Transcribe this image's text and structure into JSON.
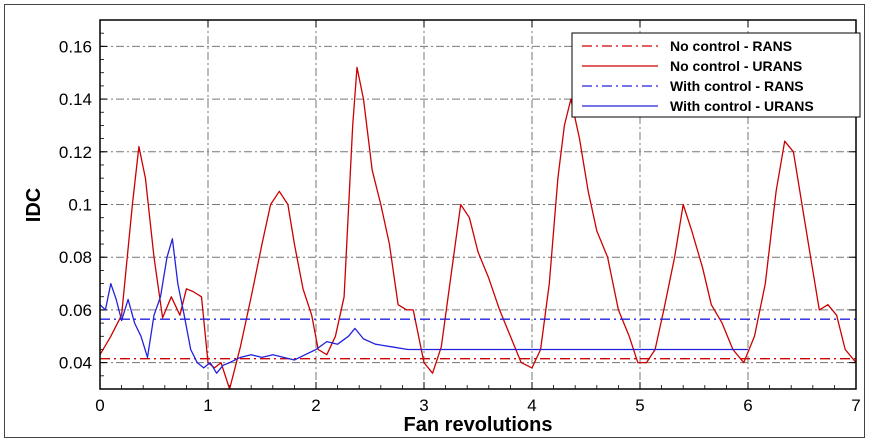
{
  "chart_data": {
    "type": "line",
    "xlabel": "Fan revolutions",
    "ylabel": "IDC",
    "xlim": [
      0,
      7
    ],
    "ylim": [
      0.03,
      0.17
    ],
    "xticks": [
      0,
      1,
      2,
      3,
      4,
      5,
      6,
      7
    ],
    "xtick_labels": [
      "0",
      "1",
      "2",
      "3",
      "4",
      "5",
      "6",
      "7"
    ],
    "yticks": [
      0.04,
      0.06,
      0.08,
      0.1,
      0.12,
      0.14,
      0.16
    ],
    "ytick_labels": [
      "0.04",
      "0.06",
      "0.08",
      "0.1",
      "0.12",
      "0.14",
      "0.16"
    ],
    "grid": true,
    "legend_position": "top-right",
    "series": [
      {
        "name": "No control - RANS",
        "color": "#cc0000",
        "style": "dashdot",
        "x": [
          0,
          7
        ],
        "y": [
          0.0415,
          0.0415
        ]
      },
      {
        "name": "No control - URANS",
        "color": "#cc0000",
        "style": "solid",
        "x": [
          0,
          0.1,
          0.2,
          0.3,
          0.36,
          0.42,
          0.5,
          0.58,
          0.66,
          0.74,
          0.8,
          0.86,
          0.94,
          1.0,
          1.06,
          1.12,
          1.2,
          1.3,
          1.4,
          1.5,
          1.58,
          1.66,
          1.74,
          1.8,
          1.88,
          1.96,
          2.02,
          2.1,
          2.18,
          2.26,
          2.34,
          2.38,
          2.44,
          2.52,
          2.6,
          2.68,
          2.76,
          2.84,
          2.9,
          3.0,
          3.08,
          3.16,
          3.24,
          3.34,
          3.42,
          3.5,
          3.6,
          3.7,
          3.8,
          3.9,
          4.0,
          4.08,
          4.16,
          4.24,
          4.3,
          4.36,
          4.44,
          4.52,
          4.6,
          4.7,
          4.8,
          4.9,
          4.98,
          5.06,
          5.14,
          5.22,
          5.32,
          5.4,
          5.48,
          5.58,
          5.66,
          5.76,
          5.86,
          5.96,
          6.06,
          6.16,
          6.26,
          6.34,
          6.42,
          6.5,
          6.58,
          6.66,
          6.74,
          6.82,
          6.9,
          7.0
        ],
        "y": [
          0.043,
          0.05,
          0.058,
          0.1,
          0.122,
          0.11,
          0.08,
          0.057,
          0.065,
          0.058,
          0.068,
          0.067,
          0.065,
          0.04,
          0.038,
          0.04,
          0.03,
          0.046,
          0.065,
          0.085,
          0.1,
          0.105,
          0.1,
          0.085,
          0.068,
          0.058,
          0.045,
          0.043,
          0.05,
          0.065,
          0.13,
          0.152,
          0.14,
          0.113,
          0.1,
          0.085,
          0.062,
          0.06,
          0.06,
          0.04,
          0.036,
          0.046,
          0.07,
          0.1,
          0.095,
          0.082,
          0.072,
          0.06,
          0.05,
          0.04,
          0.038,
          0.045,
          0.07,
          0.11,
          0.13,
          0.14,
          0.125,
          0.105,
          0.09,
          0.08,
          0.06,
          0.05,
          0.04,
          0.04,
          0.045,
          0.06,
          0.08,
          0.1,
          0.09,
          0.076,
          0.062,
          0.055,
          0.045,
          0.04,
          0.05,
          0.07,
          0.105,
          0.124,
          0.12,
          0.1,
          0.08,
          0.06,
          0.062,
          0.058,
          0.045,
          0.04
        ]
      },
      {
        "name": "With control - RANS",
        "color": "#2222dd",
        "style": "dashdot",
        "x": [
          0,
          7
        ],
        "y": [
          0.0565,
          0.0565
        ]
      },
      {
        "name": "With control - URANS",
        "color": "#2222dd",
        "style": "solid",
        "x": [
          0,
          0.05,
          0.1,
          0.15,
          0.2,
          0.26,
          0.32,
          0.38,
          0.44,
          0.5,
          0.56,
          0.62,
          0.67,
          0.72,
          0.78,
          0.84,
          0.9,
          0.96,
          1.02,
          1.08,
          1.14,
          1.2,
          1.3,
          1.4,
          1.5,
          1.6,
          1.7,
          1.8,
          1.9,
          2.0,
          2.1,
          2.2,
          2.3,
          2.36,
          2.44,
          2.55,
          2.7,
          2.85,
          3.0,
          3.2,
          3.5,
          3.8,
          4.1,
          4.4,
          4.7,
          5.0,
          5.3,
          5.6,
          5.9,
          6.0
        ],
        "y": [
          0.062,
          0.06,
          0.07,
          0.064,
          0.056,
          0.064,
          0.055,
          0.05,
          0.042,
          0.058,
          0.065,
          0.08,
          0.087,
          0.07,
          0.058,
          0.045,
          0.04,
          0.038,
          0.04,
          0.036,
          0.039,
          0.04,
          0.042,
          0.043,
          0.042,
          0.043,
          0.042,
          0.041,
          0.043,
          0.045,
          0.048,
          0.047,
          0.05,
          0.053,
          0.049,
          0.047,
          0.046,
          0.045,
          0.045,
          0.045,
          0.045,
          0.045,
          0.045,
          0.045,
          0.045,
          0.045,
          0.045,
          0.045,
          0.045,
          0.045
        ]
      }
    ]
  }
}
